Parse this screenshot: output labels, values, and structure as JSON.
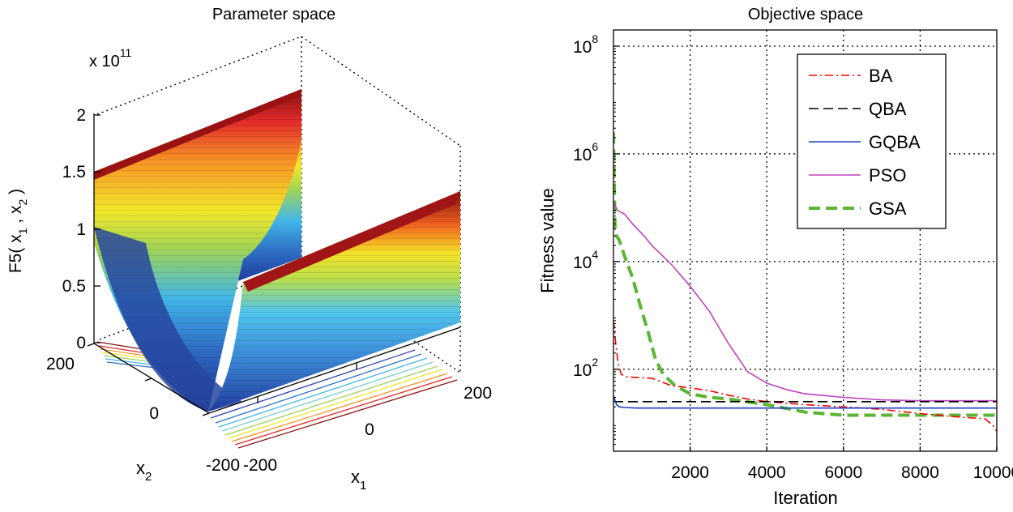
{
  "chart_data": [
    {
      "type": "surface",
      "title": "Parameter space",
      "zlabel": "F5( x",
      "zlabel_sub1": "1",
      "zlabel_sep": " , x",
      "zlabel_sub2": "2",
      "zlabel_end": " )",
      "xlabel": "x",
      "xlabel_sub": "1",
      "ylabel": "x",
      "ylabel_sub": "2",
      "z_multiplier": "x 10",
      "z_exponent": "11",
      "z_ticks": [
        "0",
        "0.5",
        "1",
        "1.5",
        "2"
      ],
      "x_ticks": [
        "-200",
        "0",
        "200"
      ],
      "y_ticks": [
        "-200",
        "0",
        "200"
      ],
      "zlim": [
        0,
        2
      ],
      "xlim": [
        -200,
        200
      ],
      "ylim": [
        -200,
        200
      ],
      "colormap": "jet"
    },
    {
      "type": "line",
      "yscale": "log",
      "title": "Objective space",
      "xlabel": "Iteration",
      "ylabel": "Fitness value",
      "xlim": [
        0,
        10000
      ],
      "ylim": [
        3,
        200000000
      ],
      "x_ticks": [
        "2000",
        "4000",
        "6000",
        "8000",
        "10000"
      ],
      "y_tick_base": "10",
      "y_ticks": [
        {
          "value": 100,
          "exp": "2"
        },
        {
          "value": 10000,
          "exp": "4"
        },
        {
          "value": 1000000,
          "exp": "6"
        },
        {
          "value": 100000000,
          "exp": "8"
        }
      ],
      "grid": true,
      "legend_position": "top-right",
      "series": [
        {
          "name": "BA",
          "color": "#ff0000",
          "style": "dashdot",
          "x": [
            0,
            60,
            120,
            200,
            350,
            700,
            1000,
            1500,
            2000,
            2500,
            3000,
            3500,
            4000,
            5000,
            6000,
            7000,
            8000,
            9000,
            9700,
            9900,
            10000
          ],
          "y": [
            800,
            300,
            130,
            80,
            72,
            70,
            68,
            50,
            45,
            40,
            33,
            28,
            25,
            22,
            20,
            18,
            15,
            13,
            12,
            9,
            7
          ]
        },
        {
          "name": "QBA",
          "color": "#000000",
          "style": "dashed",
          "x": [
            0,
            10000
          ],
          "y": [
            25,
            25
          ]
        },
        {
          "name": "GQBA",
          "color": "#1f3fbf",
          "style": "solid",
          "x": [
            0,
            80,
            150,
            300,
            600,
            10000
          ],
          "y": [
            32,
            22,
            20,
            19.5,
            19,
            19
          ]
        },
        {
          "name": "PSO",
          "color": "#bf40bf",
          "style": "solid",
          "x": [
            0,
            100,
            300,
            500,
            800,
            1000,
            1500,
            2000,
            2500,
            3000,
            3500,
            4000,
            4500,
            5000,
            6000,
            7000,
            8000,
            10000
          ],
          "y": [
            130000,
            90000,
            75000,
            50000,
            30000,
            20000,
            9000,
            3500,
            1200,
            300,
            90,
            55,
            42,
            35,
            30,
            27,
            26,
            26
          ]
        },
        {
          "name": "GSA",
          "color": "#5ab532",
          "style": "dashed-thick",
          "x": [
            0,
            40,
            80,
            150,
            300,
            500,
            700,
            900,
            1100,
            1300,
            1600,
            2000,
            2500,
            3000,
            4000,
            5000,
            6000,
            7000,
            8000,
            10000
          ],
          "y": [
            2500000,
            40000,
            30000,
            25000,
            12000,
            5000,
            1500,
            500,
            150,
            80,
            50,
            35,
            30,
            28,
            22,
            16,
            14,
            14,
            14,
            14
          ]
        }
      ]
    }
  ]
}
